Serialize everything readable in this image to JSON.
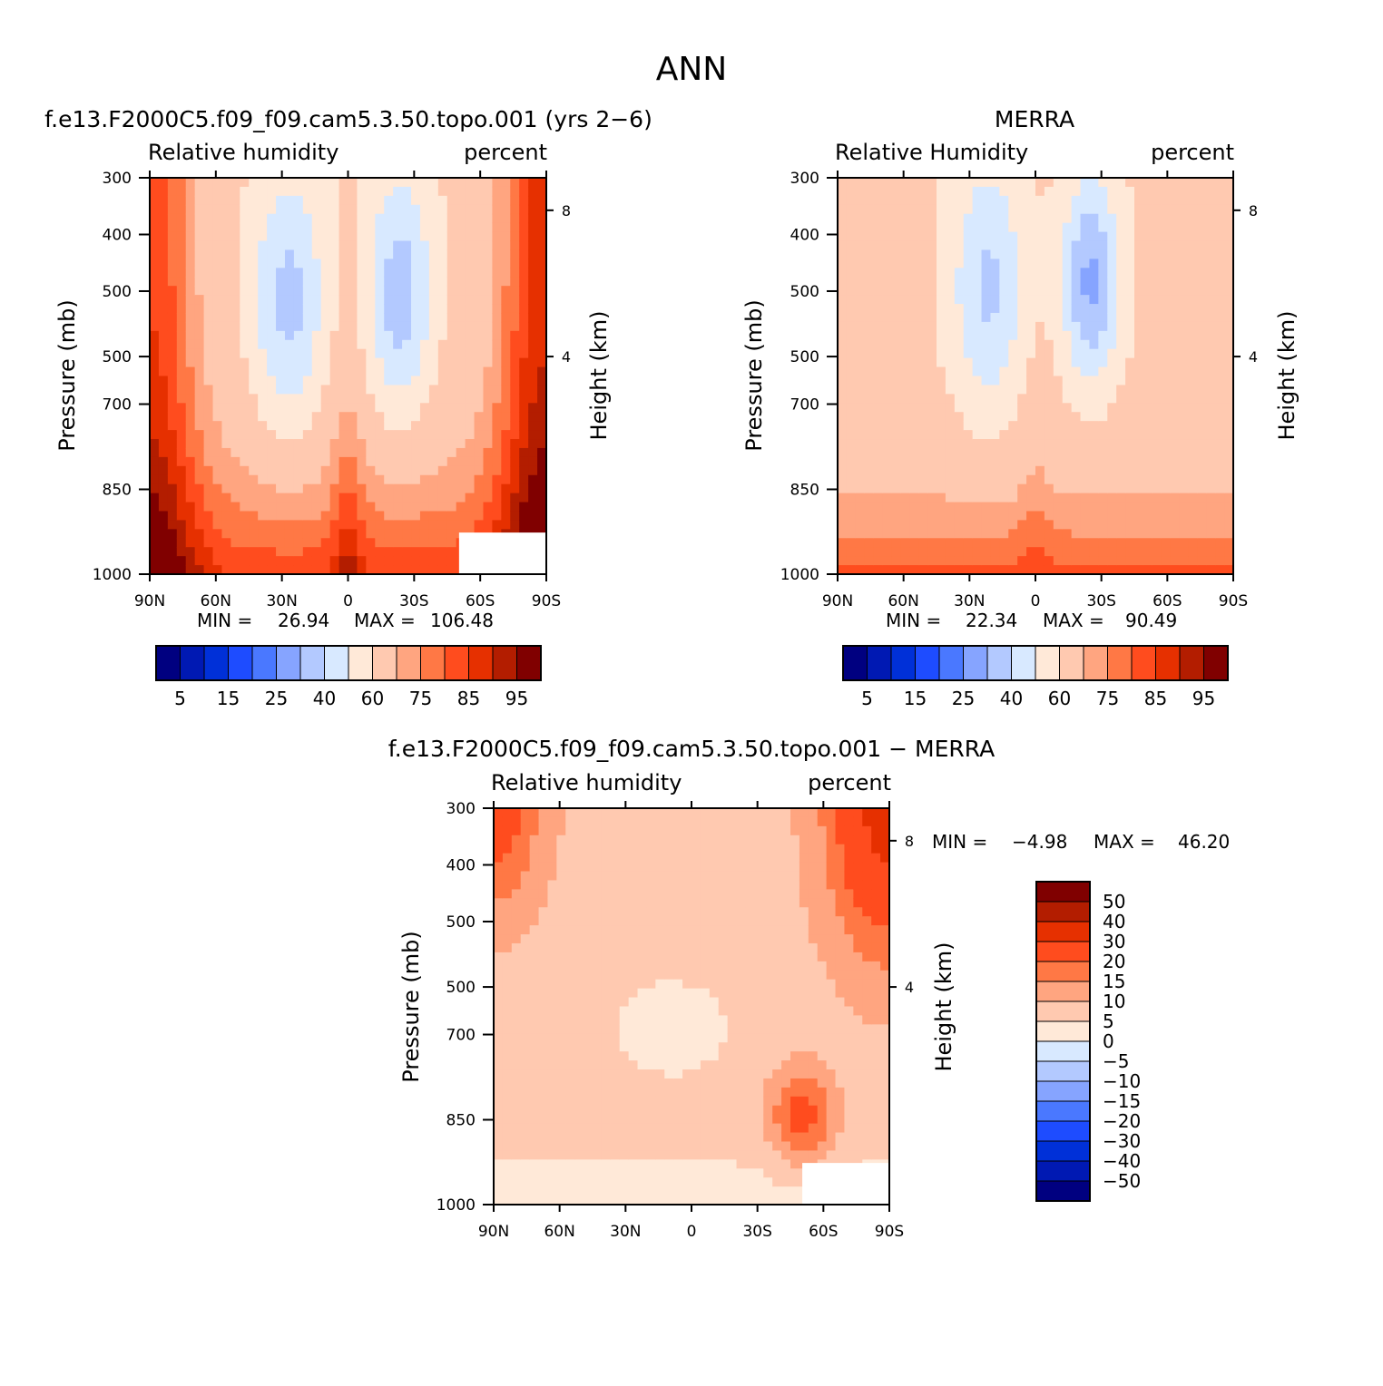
{
  "page": {
    "title": "ANN"
  },
  "colors": {
    "rh_scale": [
      "#000080",
      "#0019b3",
      "#0030d8",
      "#1e4cff",
      "#4a78ff",
      "#86a4ff",
      "#b3c9ff",
      "#d8e9ff",
      "#ffe9d8",
      "#ffc9b0",
      "#ffa580",
      "#ff7845",
      "#ff4c1e",
      "#e63000",
      "#b31d00",
      "#800000"
    ],
    "diff_scale": [
      "#000080",
      "#0019b3",
      "#0030d8",
      "#1e4cff",
      "#4a78ff",
      "#86a4ff",
      "#b3c9ff",
      "#d8e9ff",
      "#ffe9d8",
      "#ffc9b0",
      "#ffa580",
      "#ff7845",
      "#ff4c1e",
      "#e63000",
      "#b31d00",
      "#800000"
    ]
  },
  "chart_data": [
    {
      "type": "heatmap",
      "title": "f.e13.F2000C5.f09_f09.cam5.3.50.topo.001 (yrs 2−6)",
      "left_label": "Relative humidity",
      "right_label": "percent",
      "ylabel": "Pressure (mb)",
      "y2label": "Height (km)",
      "xticks": [
        "90N",
        "60N",
        "30N",
        "0",
        "30S",
        "60S",
        "90S"
      ],
      "yticks": [
        "300",
        "400",
        "500",
        "500",
        "700",
        "850",
        "1000"
      ],
      "y2ticks": [
        "8",
        "4"
      ],
      "ylim": [
        300,
        1000
      ],
      "min_label": "MIN =",
      "min_value": "26.94",
      "max_label": "MAX =",
      "max_value": "106.48",
      "colorbar_ticks": [
        "5",
        "15",
        "25",
        "40",
        "60",
        "75",
        "85",
        "95"
      ]
    },
    {
      "type": "heatmap",
      "title": "MERRA",
      "left_label": "Relative Humidity",
      "right_label": "percent",
      "ylabel": "Pressure (mb)",
      "y2label": "Height (km)",
      "xticks": [
        "90N",
        "60N",
        "30N",
        "0",
        "30S",
        "60S",
        "90S"
      ],
      "yticks": [
        "300",
        "400",
        "500",
        "500",
        "700",
        "850",
        "1000"
      ],
      "y2ticks": [
        "8",
        "4"
      ],
      "ylim": [
        300,
        1000
      ],
      "min_label": "MIN =",
      "min_value": "22.34",
      "max_label": "MAX =",
      "max_value": "90.49",
      "colorbar_ticks": [
        "5",
        "15",
        "25",
        "40",
        "60",
        "75",
        "85",
        "95"
      ]
    },
    {
      "type": "heatmap",
      "title": "f.e13.F2000C5.f09_f09.cam5.3.50.topo.001 − MERRA",
      "left_label": "Relative humidity",
      "right_label": "percent",
      "ylabel": "Pressure (mb)",
      "y2label": "Height (km)",
      "xticks": [
        "90N",
        "60N",
        "30N",
        "0",
        "30S",
        "60S",
        "90S"
      ],
      "yticks": [
        "300",
        "400",
        "500",
        "500",
        "700",
        "850",
        "1000"
      ],
      "y2ticks": [
        "8",
        "4"
      ],
      "ylim": [
        300,
        1000
      ],
      "min_label": "MIN =",
      "min_value": "−4.98",
      "max_label": "MAX =",
      "max_value": "46.20",
      "colorbar_ticks": [
        "50",
        "40",
        "30",
        "20",
        "15",
        "10",
        "5",
        "0",
        "−5",
        "−10",
        "−15",
        "−20",
        "−30",
        "−40",
        "−50"
      ]
    }
  ]
}
